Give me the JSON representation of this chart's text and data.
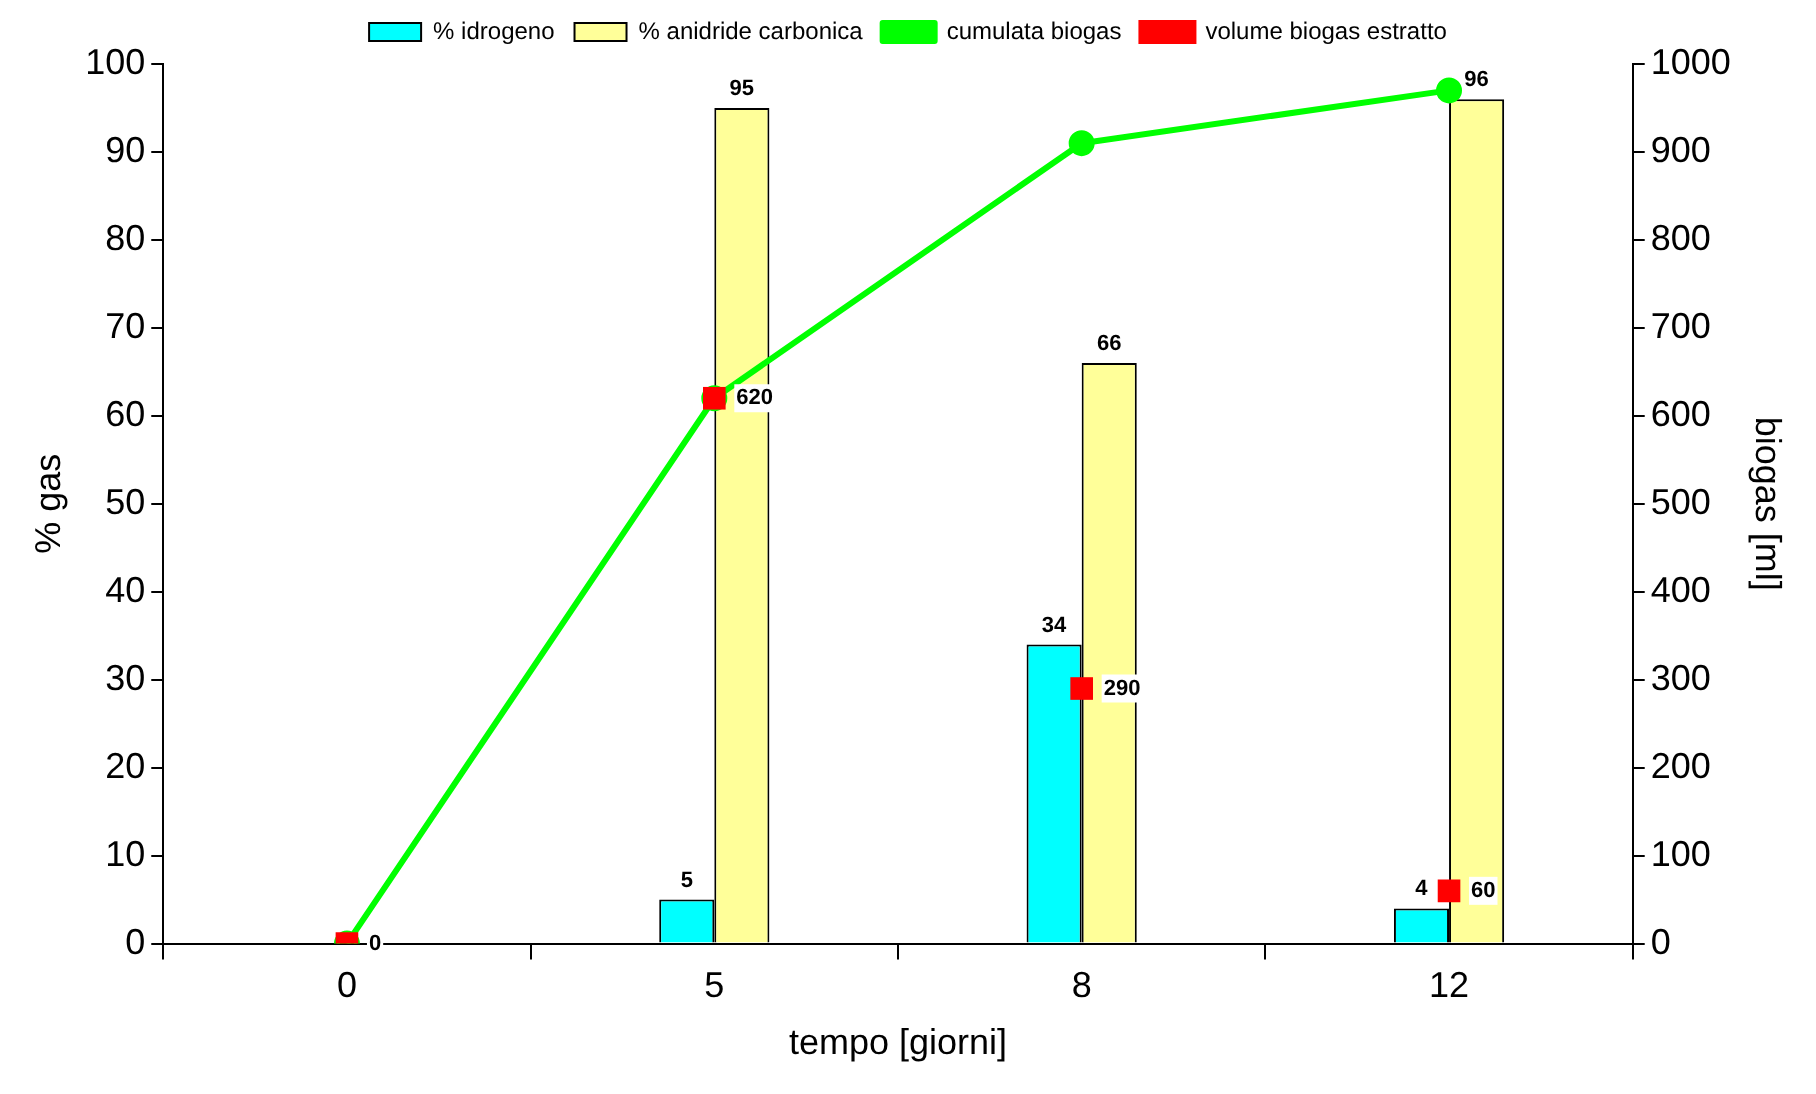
{
  "chart_data": {
    "type": "bar",
    "xlabel": "tempo [giorni]",
    "ylabel": "% gas",
    "y2label": "biogas [ml]",
    "categories": [
      "0",
      "5",
      "8",
      "12"
    ],
    "series": [
      {
        "name": "% idrogeno",
        "type": "bar",
        "color": "#00ffff",
        "values": [
          null,
          5,
          34,
          4
        ],
        "value_labels": [
          null,
          "5",
          "34",
          "4"
        ]
      },
      {
        "name": "% anidride carbonica",
        "type": "bar",
        "color": "#ffff99",
        "values": [
          null,
          95,
          66,
          96
        ],
        "value_labels": [
          null,
          "95",
          "66",
          "96"
        ]
      },
      {
        "name": "cumulata biogas",
        "type": "line",
        "axis": "y2",
        "color": "#00ff00",
        "marker": "circle",
        "values": [
          0,
          620,
          910,
          970
        ]
      },
      {
        "name": "volume biogas estratto",
        "type": "scatter",
        "axis": "y2",
        "color": "#ff0000",
        "marker": "square",
        "values": [
          0,
          620,
          290,
          60
        ],
        "value_labels": [
          "0",
          "620",
          "290",
          "60"
        ]
      }
    ],
    "ylim": [
      0,
      100
    ],
    "yticks": [
      0,
      10,
      20,
      30,
      40,
      50,
      60,
      70,
      80,
      90,
      100
    ],
    "y2lim": [
      0,
      1000
    ],
    "y2ticks": [
      0,
      100,
      200,
      300,
      400,
      500,
      600,
      700,
      800,
      900,
      1000
    ],
    "grid": false,
    "legend": "top"
  }
}
